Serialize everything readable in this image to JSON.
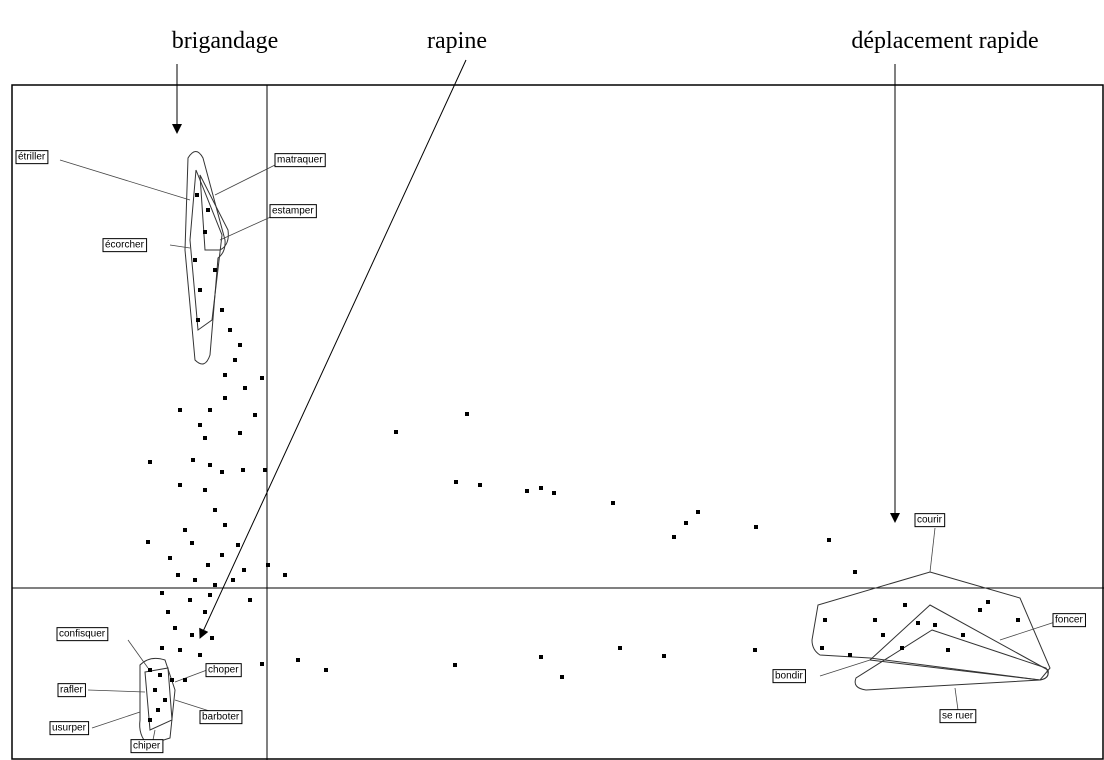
{
  "annotations": [
    "brigandage",
    "rapine",
    "déplacement rapide"
  ],
  "labels": [
    "étriller",
    "matraquer",
    "estamper",
    "écorcher",
    "courir",
    "foncer",
    "bondir",
    "se ruer",
    "confisquer",
    "rafler",
    "usurper",
    "chiper",
    "choper",
    "barboter"
  ]
}
